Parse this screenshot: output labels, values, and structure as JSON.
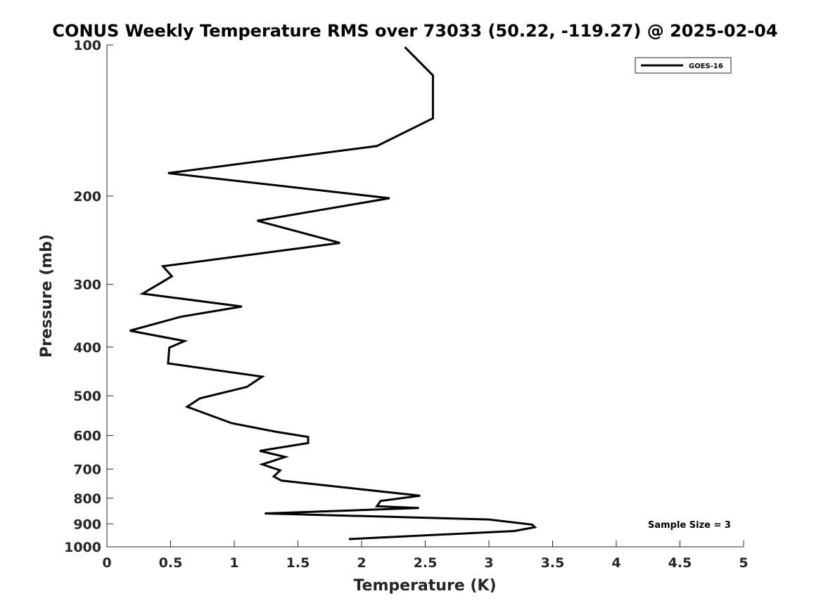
{
  "chart_data": {
    "type": "line",
    "title": "CONUS Weekly Temperature RMS over 73033 (50.22, -119.27) @ 2025-02-04",
    "xlabel": "Temperature (K)",
    "ylabel": "Pressure (mb)",
    "xlim": [
      0,
      5
    ],
    "ylim": [
      100,
      1000
    ],
    "y_scale": "log",
    "y_reversed": true,
    "x_ticks": [
      0,
      0.5,
      1,
      1.5,
      2,
      2.5,
      3,
      3.5,
      4,
      4.5,
      5
    ],
    "x_tick_labels": [
      "0",
      "0.5",
      "1",
      "1.5",
      "2",
      "2.5",
      "3",
      "3.5",
      "4",
      "4.5",
      "5"
    ],
    "y_ticks": [
      100,
      200,
      300,
      400,
      500,
      600,
      700,
      800,
      900,
      1000
    ],
    "y_tick_labels": [
      "100",
      "200",
      "300",
      "400",
      "500",
      "600",
      "700",
      "800",
      "900",
      "1000"
    ],
    "grid": false,
    "legend_position": "top-right",
    "annotation": "Sample Size = 3",
    "line_color": "#000000",
    "series": [
      {
        "name": "GOES-16",
        "x": [
          2.34,
          2.56,
          2.56,
          2.56,
          2.12,
          0.48,
          2.22,
          1.18,
          1.83,
          0.44,
          0.51,
          0.28,
          1.06,
          0.58,
          0.18,
          0.61,
          0.49,
          0.48,
          1.22,
          1.1,
          0.73,
          0.63,
          0.98,
          1.33,
          1.58,
          1.58,
          1.2,
          1.4,
          1.22,
          1.36,
          1.31,
          1.37,
          2.46,
          2.15,
          2.12,
          2.45,
          1.24,
          3.0,
          3.34,
          3.36,
          3.2,
          1.9
        ],
        "y": [
          101,
          115,
          125,
          140,
          159,
          180,
          202,
          224,
          248,
          276,
          289,
          313,
          332,
          348,
          371,
          389,
          401,
          431,
          458,
          480,
          506,
          526,
          567,
          590,
          604,
          621,
          644,
          662,
          685,
          704,
          724,
          738,
          791,
          810,
          830,
          837,
          858,
          882,
          903,
          914,
          930,
          965
        ]
      }
    ]
  }
}
